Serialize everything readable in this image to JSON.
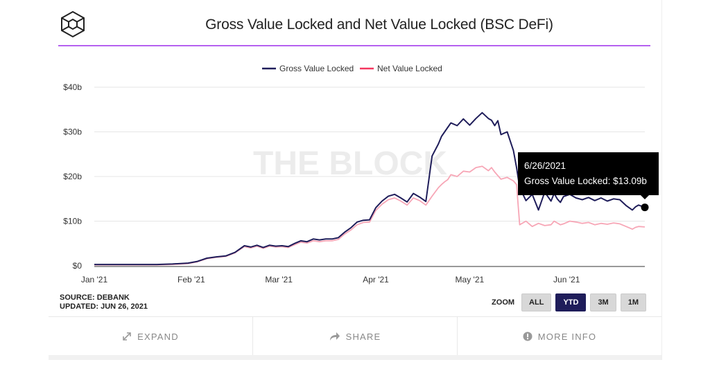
{
  "header": {
    "title": "Gross Value Locked and Net Value Locked (BSC DeFi)",
    "logo_icon": "the-block-cube-logo-icon",
    "accent_color": "#b561f0"
  },
  "watermark": "THE BLOCK",
  "tooltip": {
    "date": "6/26/2021",
    "text": "Gross Value Locked: $13.09b"
  },
  "footer": {
    "source": "SOURCE: DEBANK",
    "updated": "UPDATED: JUN 26, 2021",
    "zoom_label": "ZOOM",
    "zoom_options": [
      {
        "label": "ALL",
        "active": false
      },
      {
        "label": "YTD",
        "active": true
      },
      {
        "label": "3M",
        "active": false
      },
      {
        "label": "1M",
        "active": false
      }
    ]
  },
  "actions": [
    {
      "label": "EXPAND",
      "icon": "expand-arrows-icon"
    },
    {
      "label": "SHARE",
      "icon": "share-arrow-icon"
    },
    {
      "label": "MORE INFO",
      "icon": "info-circle-icon"
    }
  ],
  "chart_data": {
    "type": "line",
    "title": "Gross Value Locked and Net Value Locked (BSC DeFi)",
    "xlabel": "",
    "ylabel": "",
    "x_start": "2021-01-01",
    "x_end": "2021-06-26",
    "ylim": [
      0,
      40
    ],
    "y_unit": "$b",
    "y_ticks": [
      {
        "value": 0,
        "label": "$0"
      },
      {
        "value": 10,
        "label": "$10b"
      },
      {
        "value": 20,
        "label": "$20b"
      },
      {
        "value": 30,
        "label": "$30b"
      },
      {
        "value": 40,
        "label": "$40b"
      }
    ],
    "x_ticks": [
      {
        "day": 0,
        "label": "Jan '21"
      },
      {
        "day": 31,
        "label": "Feb '21"
      },
      {
        "day": 59,
        "label": "Mar '21"
      },
      {
        "day": 90,
        "label": "Apr '21"
      },
      {
        "day": 120,
        "label": "May '21"
      },
      {
        "day": 151,
        "label": "Jun '21"
      }
    ],
    "grid": true,
    "legend": "top-center",
    "x_days": [
      0,
      5,
      10,
      15,
      20,
      25,
      30,
      33,
      36,
      39,
      42,
      45,
      48,
      50,
      52,
      54,
      56,
      58,
      60,
      62,
      64,
      66,
      68,
      70,
      72,
      74,
      76,
      78,
      80,
      82,
      84,
      86,
      88,
      90,
      92,
      94,
      96,
      98,
      100,
      102,
      104,
      106,
      108,
      110,
      111,
      112,
      113,
      114,
      116,
      118,
      120,
      122,
      124,
      126,
      127,
      128,
      129,
      130,
      132,
      134,
      135,
      136,
      138,
      140,
      142,
      144,
      146,
      147,
      148,
      149,
      150,
      152,
      154,
      156,
      158,
      160,
      162,
      164,
      166,
      168,
      170,
      172,
      173,
      174,
      176
    ],
    "series": [
      {
        "name": "Gross Value Locked",
        "color": "#1f1d5a",
        "values": [
          0.3,
          0.3,
          0.3,
          0.3,
          0.3,
          0.4,
          0.6,
          1.0,
          1.7,
          2.0,
          2.2,
          3.0,
          4.5,
          4.2,
          4.6,
          4.1,
          4.6,
          4.4,
          4.5,
          4.3,
          5.0,
          5.6,
          5.4,
          6.0,
          5.8,
          6.0,
          6.0,
          6.3,
          7.5,
          8.5,
          9.8,
          10.2,
          10.3,
          13.0,
          14.5,
          15.6,
          16.0,
          15.2,
          14.3,
          16.2,
          15.4,
          14.4,
          24.6,
          27.3,
          29.0,
          30.0,
          31.0,
          32.0,
          31.4,
          32.9,
          31.5,
          33.0,
          34.3,
          33.0,
          32.6,
          31.4,
          32.5,
          29.4,
          30.0,
          25.8,
          22.0,
          17.5,
          14.6,
          16.0,
          12.5,
          16.5,
          14.5,
          16.2,
          15.0,
          14.2,
          15.5,
          16.0,
          15.2,
          14.8,
          15.3,
          14.6,
          15.2,
          14.5,
          15.0,
          14.8,
          13.5,
          12.5,
          13.2,
          13.6,
          13.09
        ]
      },
      {
        "name": "Net Value Locked",
        "color": "#f7a6b6",
        "values": [
          0.2,
          0.2,
          0.2,
          0.2,
          0.2,
          0.3,
          0.5,
          0.9,
          1.6,
          1.9,
          2.1,
          2.9,
          4.3,
          4.0,
          4.4,
          3.9,
          4.4,
          4.2,
          4.3,
          4.1,
          4.7,
          5.3,
          5.1,
          5.6,
          5.4,
          5.6,
          5.6,
          5.9,
          7.1,
          8.0,
          9.2,
          9.7,
          9.8,
          12.4,
          13.8,
          14.8,
          15.2,
          14.5,
          13.6,
          15.2,
          14.6,
          13.6,
          15.6,
          17.5,
          18.2,
          18.8,
          19.3,
          20.4,
          20.0,
          21.2,
          21.0,
          22.0,
          22.3,
          21.3,
          22.0,
          21.0,
          20.2,
          19.4,
          19.8,
          19.0,
          18.2,
          9.2,
          10.0,
          8.8,
          9.5,
          9.0,
          9.2,
          10.0,
          9.6,
          9.2,
          9.4,
          10.0,
          9.8,
          9.5,
          9.7,
          9.2,
          9.5,
          9.3,
          9.6,
          9.4,
          8.8,
          8.2,
          8.6,
          8.8,
          8.7
        ]
      }
    ],
    "highlight": {
      "series": "Gross Value Locked",
      "date": "6/26/2021",
      "value": 13.09
    }
  }
}
